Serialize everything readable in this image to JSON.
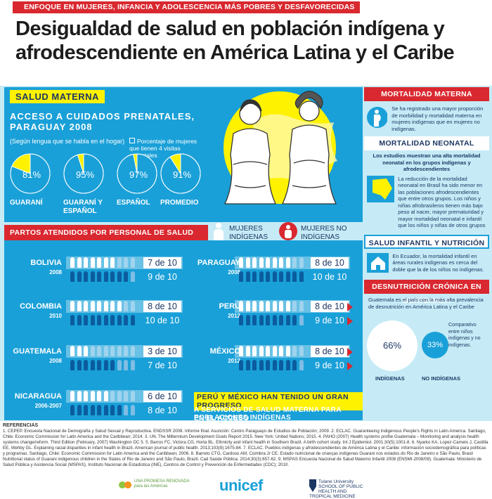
{
  "top_banner": "ENFOQUE EN MUJERES, INFANCIA Y ADOLESCENCIA MÁS POBRES Y DESFAVORECIDAS",
  "title_line1": "Desigualdad de salud en población indígena y",
  "title_line2": "afrodescendiente en América Latina y el Caribe",
  "salud_materna": {
    "header": "SALUD MATERNA",
    "subtitle": "ACCESO A CUIDADOS PRENATALES, PARAGUAY 2008",
    "note": "(Según lengua que se habla en el hogar)",
    "legend": "Porcentaje de mujeres que tienen 4 visitas prenatales",
    "pies": [
      {
        "label": "GUARANÍ",
        "value": 81,
        "text": "81%"
      },
      {
        "label": "GUARANÍ Y ESPAÑOL",
        "value": 95,
        "text": "95%"
      },
      {
        "label": "ESPAÑOL",
        "value": 97,
        "text": "97%"
      },
      {
        "label": "PROMEDIO",
        "value": 91,
        "text": "91%"
      }
    ],
    "colors": {
      "primary": "#1aa0d8",
      "highlight": "#fff200"
    }
  },
  "partos": {
    "header": "PARTOS ATENDIDOS POR PERSONAL DE SALUD CAPACITADO",
    "legend_indigenous": "MUJERES INDÍGENAS",
    "legend_non": "MUJERES NO INDÍGENAS",
    "rows": [
      {
        "country": "BOLIVIA",
        "year": "2008",
        "indigenous": 7,
        "non_indigenous": 9,
        "text_i": "7 de 10",
        "text_n": "9 de 10"
      },
      {
        "country": "COLOMBIA",
        "year": "2010",
        "indigenous": 8,
        "non_indigenous": 10,
        "text_i": "8 de 10",
        "text_n": "10 de 10"
      },
      {
        "country": "GUATEMALA",
        "year": "2008",
        "indigenous": 3,
        "non_indigenous": 7,
        "text_i": "3 de 10",
        "text_n": "7 de 10"
      },
      {
        "country": "NICARAGUA",
        "year": "2006-2007",
        "indigenous": 6,
        "non_indigenous": 8,
        "text_i": "6 de 10",
        "text_n": "8 de 10"
      },
      {
        "country": "PARAGUAY",
        "year": "2008",
        "indigenous": 8,
        "non_indigenous": 10,
        "text_i": "8 de 10",
        "text_n": "10 de 10"
      },
      {
        "country": "PERÚ",
        "year": "2012",
        "indigenous": 8,
        "non_indigenous": 9,
        "text_i": "8 de 10",
        "text_n": "9 de 10"
      },
      {
        "country": "MÉXICO",
        "year": "2012",
        "indigenous": 8,
        "non_indigenous": 9,
        "text_i": "8 de 10",
        "text_n": "9 de 10"
      }
    ],
    "progress_1": "PERÚ Y MÉXICO HAN TENIDO UN GRAN PROGRESO",
    "progress_2": "EN EL ACCESO",
    "progress_3": "A SERVICIOS DE SALUD MATERNA PARA POBLACIONES INDÍGENAS"
  },
  "right": {
    "mort_materna": "MORTALIDAD MATERNA",
    "mort_materna_text": "Se ha registrado una mayor proporción de morbilidad y mortalidad materna en mujeres indígenas que en mujeres no indígenas.",
    "mort_neonatal": "MORTALIDAD NEONATAL",
    "mort_neonatal_text1": "Los estudios muestran una alta mortalidad neonatal en los grupos indígenas y afrodescendientes",
    "mort_neonatal_text2": "La reducción de la mortalidad neonatal en Brasil ha sido menor en las poblaciones afrodescendientes que entre otros grupos. Los niños y niñas afrobrasileros tienen más bajo peso al nacer, mayor prematuridad y mayor mortalidad neonatal e infantil que los niños y niñas de otros grupos",
    "salud_infantil": "SALUD INFANTIL Y NUTRICIÓN",
    "salud_infantil_text": "En Ecuador, la mortalidad infantil en áreas rurales indígenas es cerca del doble que la de los niños no indígenas.",
    "desnutricion": "DESNUTRICIÓN CRÓNICA EN GUATEMALA",
    "desnutricion_text": "Guatemala es el país con la más alta prevalencia de desnutrición en América Latina y el Caribe",
    "comparativo": "Comparativo entre niños indígenas y no indígenas.",
    "ind_value": "66%",
    "non_value": "33%",
    "ind_label": "INDÍGENAS",
    "non_label": "NO INDÍGENAS"
  },
  "refs_title": "REFERENCIAS",
  "refs_text": "1. CEPEP. Encuesta Nacional de Demografía y Salud Sexual y Reproductiva. ENDSSR 2008. Informe final. Asunción: Centro Paraguayo de Estudios de Población; 2009.   2. ECLAC. Guaranteeing Indigenous People's Rights in Latin America. Santiago, Chile: Economic Commission for Latin America and the Caribbean; 2014.   3. UN. The Millennium Development Goals Report 2015. New York: United Nations; 2015.   4. PAHO (2007) Health systems profile Guatemala – Monitoring and analysis health systems change/reform. Third Edition (February, 2007) Washington DC 5.   5. Barros FC, Victora CG, Horta BL. Ethnicity and infant health in Southern Brazil. A birth cohort study. Int J Epidemiol. 2001;30(5):1001-8.   6. Nyarko KA, Lopez-Camelo J, Castilla EE, Wehby GL. Explaining racial disparities in infant health in Brazil. American journal of public health. 2013;103(9):1675-84.   7. ECLAC. Pueblos indígenas y afrodescendientes de América Latina y el Caribe: información sociodemográfica para políticas y programas. Santiago, Chile: Economic Commission for Latin America and the Caribbean; 2006.   8. Barreto CTG, Cardoso AM, Coimbra Jr CE. Estado nutricional de crianças indígenas Guarani nos estados do Rio de Janeiro e São Paulo, Brasil Nutritional status of Guarani indigenous children in the States of Rio de Janeiro and São Paulo, Brazil. Cad Saúde Pública. 2014;30(3):657-62.   9. MSPAS Encuesta Nacional de Salud Materno Infantil 2008 (ENSMI-2008/09). Guatemala: Ministerio de Salud Pública y Asistencia Social (MSPAS), Instituto Nacional de Estadística (INE), Centros de Control y Prevención de Enfermedades (CDC); 2010.",
  "footer": {
    "logo1": "UNA PROMESA RENOVADA para las Américas",
    "logo2": "unicef",
    "logo3": "Tulane University SCHOOL OF PUBLIC HEALTH AND TROPICAL MEDICINE"
  }
}
